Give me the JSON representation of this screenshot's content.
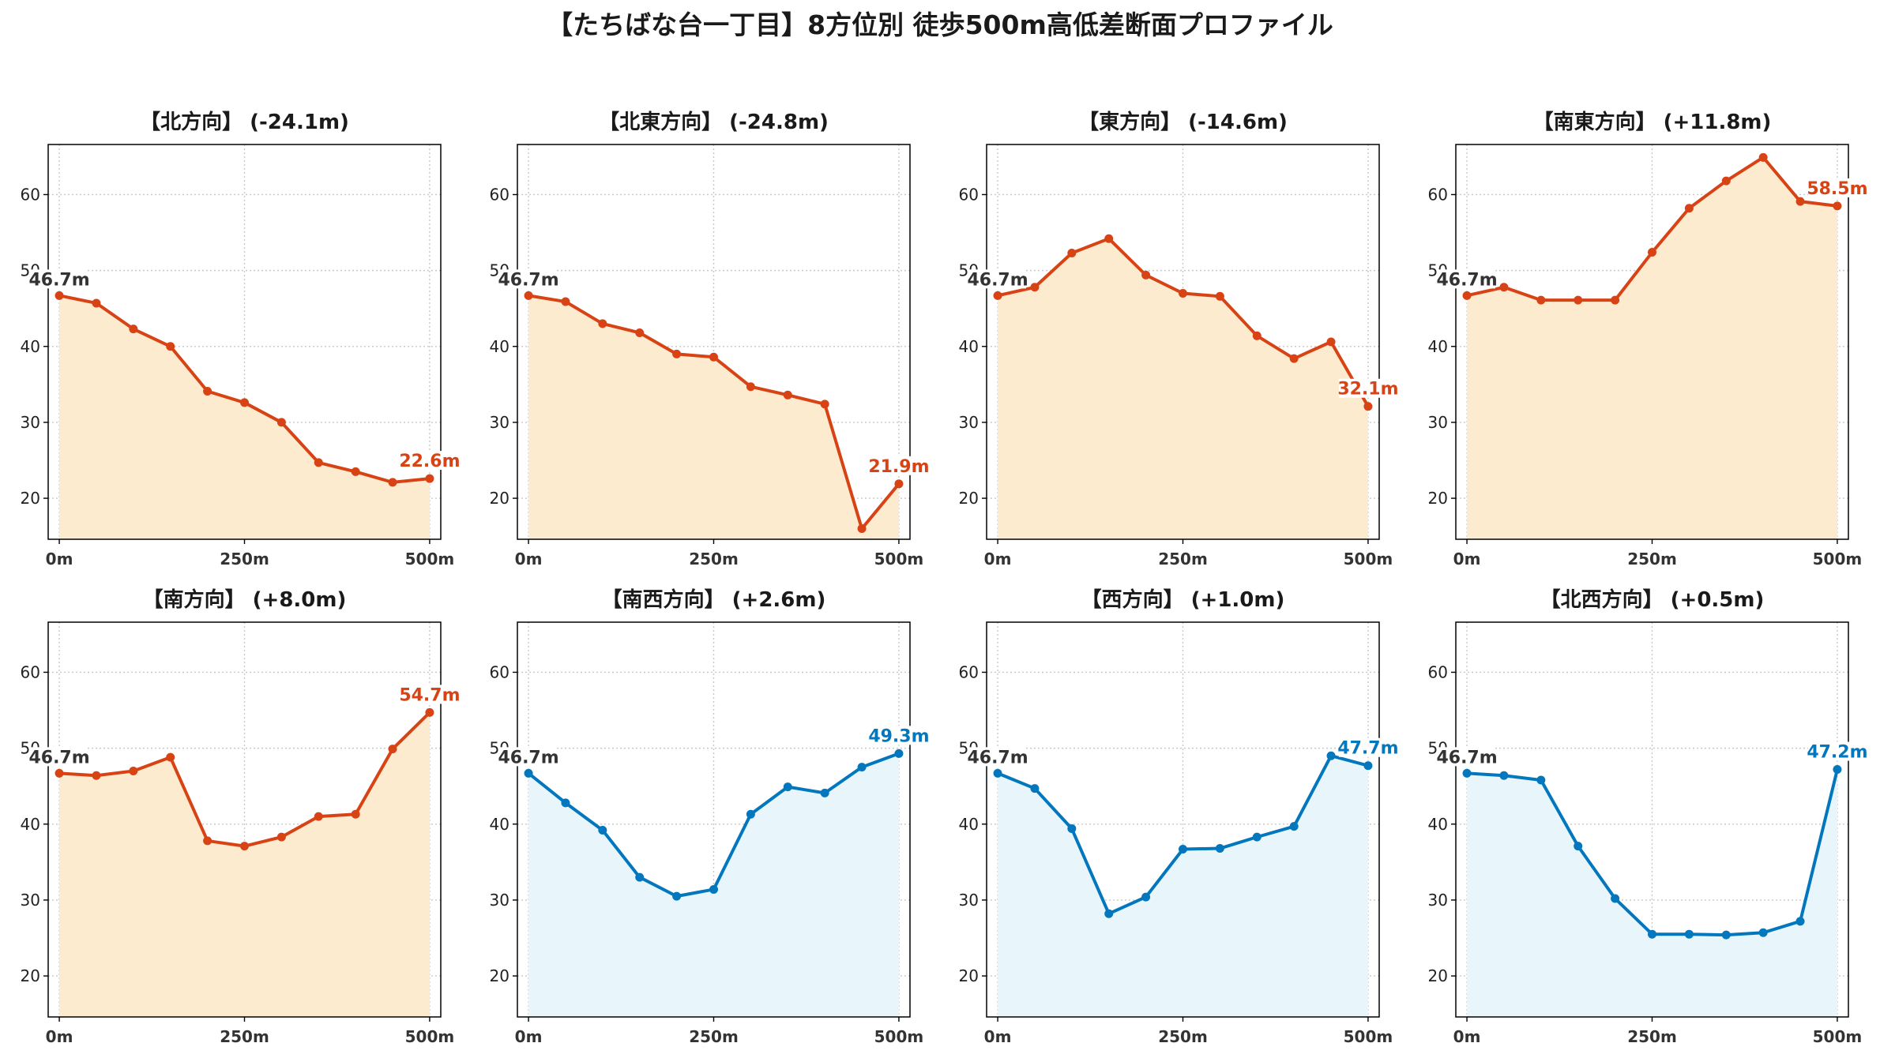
{
  "figure_title": "【たちばな台一丁目】8方位別 徒歩500m高低差断面プロファイル",
  "colors": {
    "descending_line": "#d84315",
    "descending_fill": "#fdebd0",
    "ascending_line": "#0277bd",
    "ascending_fill": "#e8f6fc"
  },
  "chart_data": [
    {
      "type": "area",
      "title": "【北方向】 (-24.1m)",
      "x": [
        0,
        50,
        100,
        150,
        200,
        250,
        300,
        350,
        400,
        450,
        500
      ],
      "values": [
        46.7,
        45.7,
        42.3,
        40.0,
        34.1,
        32.6,
        30.0,
        24.7,
        23.5,
        22.1,
        22.6
      ],
      "start_label": "46.7m",
      "end_label": "22.6m",
      "palette": "descending",
      "xticks": [
        "0m",
        "250m",
        "500m"
      ],
      "yticks": [
        "20",
        "30",
        "40",
        "50",
        "60"
      ],
      "xlim": [
        -15,
        515
      ],
      "ylim": [
        14.6,
        66.6
      ],
      "grid": true
    },
    {
      "type": "area",
      "title": "【北東方向】 (-24.8m)",
      "x": [
        0,
        50,
        100,
        150,
        200,
        250,
        300,
        350,
        400,
        450,
        500
      ],
      "values": [
        46.7,
        45.9,
        43.0,
        41.8,
        39.0,
        38.6,
        34.7,
        33.6,
        32.4,
        16.0,
        21.9
      ],
      "start_label": "46.7m",
      "end_label": "21.9m",
      "palette": "descending",
      "xticks": [
        "0m",
        "250m",
        "500m"
      ],
      "yticks": [
        "20",
        "30",
        "40",
        "50",
        "60"
      ],
      "xlim": [
        -15,
        515
      ],
      "ylim": [
        14.6,
        66.6
      ],
      "grid": true
    },
    {
      "type": "area",
      "title": "【東方向】 (-14.6m)",
      "x": [
        0,
        50,
        100,
        150,
        200,
        250,
        300,
        350,
        400,
        450,
        500
      ],
      "values": [
        46.7,
        47.8,
        52.3,
        54.2,
        49.4,
        47.0,
        46.6,
        41.4,
        38.4,
        40.6,
        32.1
      ],
      "start_label": "46.7m",
      "end_label": "32.1m",
      "palette": "descending",
      "xticks": [
        "0m",
        "250m",
        "500m"
      ],
      "yticks": [
        "20",
        "30",
        "40",
        "50",
        "60"
      ],
      "xlim": [
        -15,
        515
      ],
      "ylim": [
        14.6,
        66.6
      ],
      "grid": true
    },
    {
      "type": "area",
      "title": "【南東方向】 (+11.8m)",
      "x": [
        0,
        50,
        100,
        150,
        200,
        250,
        300,
        350,
        400,
        450,
        500
      ],
      "values": [
        46.7,
        47.8,
        46.1,
        46.1,
        46.1,
        52.4,
        58.2,
        61.8,
        64.9,
        59.1,
        58.5
      ],
      "start_label": "46.7m",
      "end_label": "58.5m",
      "palette": "descending",
      "xticks": [
        "0m",
        "250m",
        "500m"
      ],
      "yticks": [
        "20",
        "30",
        "40",
        "50",
        "60"
      ],
      "xlim": [
        -15,
        515
      ],
      "ylim": [
        14.6,
        66.6
      ],
      "grid": true
    },
    {
      "type": "area",
      "title": "【南方向】 (+8.0m)",
      "x": [
        0,
        50,
        100,
        150,
        200,
        250,
        300,
        350,
        400,
        450,
        500
      ],
      "values": [
        46.7,
        46.4,
        47.0,
        48.8,
        37.8,
        37.1,
        38.3,
        41.0,
        41.3,
        49.9,
        54.7
      ],
      "start_label": "46.7m",
      "end_label": "54.7m",
      "palette": "descending",
      "xticks": [
        "0m",
        "250m",
        "500m"
      ],
      "yticks": [
        "20",
        "30",
        "40",
        "50",
        "60"
      ],
      "xlim": [
        -15,
        515
      ],
      "ylim": [
        14.6,
        66.6
      ],
      "grid": true
    },
    {
      "type": "area",
      "title": "【南西方向】 (+2.6m)",
      "x": [
        0,
        50,
        100,
        150,
        200,
        250,
        300,
        350,
        400,
        450,
        500
      ],
      "values": [
        46.7,
        42.8,
        39.2,
        33.0,
        30.5,
        31.4,
        41.3,
        44.9,
        44.1,
        47.5,
        49.3
      ],
      "start_label": "46.7m",
      "end_label": "49.3m",
      "palette": "ascending",
      "xticks": [
        "0m",
        "250m",
        "500m"
      ],
      "yticks": [
        "20",
        "30",
        "40",
        "50",
        "60"
      ],
      "xlim": [
        -15,
        515
      ],
      "ylim": [
        14.6,
        66.6
      ],
      "grid": true
    },
    {
      "type": "area",
      "title": "【西方向】 (+1.0m)",
      "x": [
        0,
        50,
        100,
        150,
        200,
        250,
        300,
        350,
        400,
        450,
        500
      ],
      "values": [
        46.7,
        44.7,
        39.4,
        28.2,
        30.4,
        36.7,
        36.8,
        38.3,
        39.7,
        49.0,
        47.7
      ],
      "start_label": "46.7m",
      "end_label": "47.7m",
      "palette": "ascending",
      "xticks": [
        "0m",
        "250m",
        "500m"
      ],
      "yticks": [
        "20",
        "30",
        "40",
        "50",
        "60"
      ],
      "xlim": [
        -15,
        515
      ],
      "ylim": [
        14.6,
        66.6
      ],
      "grid": true
    },
    {
      "type": "area",
      "title": "【北西方向】 (+0.5m)",
      "x": [
        0,
        50,
        100,
        150,
        200,
        250,
        300,
        350,
        400,
        450,
        500
      ],
      "values": [
        46.7,
        46.4,
        45.8,
        37.1,
        30.2,
        25.5,
        25.5,
        25.4,
        25.7,
        27.2,
        47.2
      ],
      "start_label": "46.7m",
      "end_label": "47.2m",
      "palette": "ascending",
      "xticks": [
        "0m",
        "250m",
        "500m"
      ],
      "yticks": [
        "20",
        "30",
        "40",
        "50",
        "60"
      ],
      "xlim": [
        -15,
        515
      ],
      "ylim": [
        14.6,
        66.6
      ],
      "grid": true
    }
  ]
}
